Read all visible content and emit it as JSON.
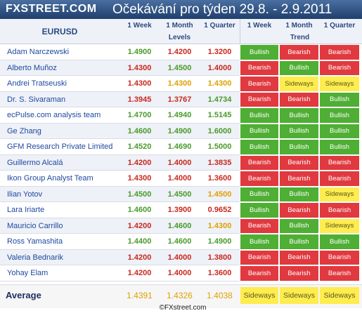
{
  "header": {
    "logo": "FXSTREET.COM",
    "title": "Očekávání pro týden 29.8. - 2.9.2011"
  },
  "table": {
    "pair": "EURUSD",
    "columns": [
      "1 Week",
      "1 Month",
      "1 Quarter",
      "1 Week",
      "1 Month",
      "1 Quarter"
    ],
    "group_levels": "Levels",
    "group_trend": "Trend",
    "rows": [
      {
        "name": "Adam Narczewski",
        "w": "1.4900",
        "m": "1.4200",
        "q": "1.3200",
        "tw": "Bullish",
        "tm": "Bearish",
        "tq": "Bearish"
      },
      {
        "name": "Alberto Muñoz",
        "w": "1.4300",
        "m": "1.4500",
        "q": "1.4000",
        "tw": "Bearish",
        "tm": "Bullish",
        "tq": "Bearish"
      },
      {
        "name": "Andrei Tratseuski",
        "w": "1.4300",
        "m": "1.4300",
        "q": "1.4300",
        "tw": "Bearish",
        "tm": "Sideways",
        "tq": "Sideways"
      },
      {
        "name": "Dr. S. Sivaraman",
        "w": "1.3945",
        "m": "1.3767",
        "q": "1.4734",
        "tw": "Bearish",
        "tm": "Bearish",
        "tq": "Bullish"
      },
      {
        "name": "ecPulse.com analysis team",
        "w": "1.4700",
        "m": "1.4940",
        "q": "1.5145",
        "tw": "Bullish",
        "tm": "Bullish",
        "tq": "Bullish"
      },
      {
        "name": "Ge Zhang",
        "w": "1.4600",
        "m": "1.4900",
        "q": "1.6000",
        "tw": "Bullish",
        "tm": "Bullish",
        "tq": "Bullish"
      },
      {
        "name": "GFM Research Private Limited",
        "w": "1.4520",
        "m": "1.4690",
        "q": "1.5000",
        "tw": "Bullish",
        "tm": "Bullish",
        "tq": "Bullish"
      },
      {
        "name": "Guillermo Alcalá",
        "w": "1.4200",
        "m": "1.4000",
        "q": "1.3835",
        "tw": "Bearish",
        "tm": "Bearish",
        "tq": "Bearish"
      },
      {
        "name": "Ikon Group Analyst Team",
        "w": "1.4300",
        "m": "1.4000",
        "q": "1.3600",
        "tw": "Bearish",
        "tm": "Bearish",
        "tq": "Bearish"
      },
      {
        "name": "Ilian Yotov",
        "w": "1.4500",
        "m": "1.4500",
        "q": "1.4500",
        "tw": "Bullish",
        "tm": "Bullish",
        "tq": "Sideways"
      },
      {
        "name": "Lara Iriarte",
        "w": "1.4600",
        "m": "1.3900",
        "q": "0.9652",
        "tw": "Bullish",
        "tm": "Bearish",
        "tq": "Bearish"
      },
      {
        "name": "Mauricio Carrillo",
        "w": "1.4200",
        "m": "1.4600",
        "q": "1.4300",
        "tw": "Bearish",
        "tm": "Bullish",
        "tq": "Sideways"
      },
      {
        "name": "Ross Yamashita",
        "w": "1.4400",
        "m": "1.4600",
        "q": "1.4900",
        "tw": "Bullish",
        "tm": "Bullish",
        "tq": "Bullish"
      },
      {
        "name": "Valeria Bednarik",
        "w": "1.4200",
        "m": "1.4000",
        "q": "1.3800",
        "tw": "Bearish",
        "tm": "Bearish",
        "tq": "Bearish"
      },
      {
        "name": "Yohay Elam",
        "w": "1.4200",
        "m": "1.4000",
        "q": "1.3600",
        "tw": "Bearish",
        "tm": "Bearish",
        "tq": "Bearish"
      }
    ],
    "average": {
      "label": "Average",
      "w": "1.4391",
      "m": "1.4326",
      "q": "1.4038",
      "tw": "Sideways",
      "tm": "Sideways",
      "tq": "Sideways"
    },
    "footer": "©FXstreet.com"
  },
  "colors": {
    "bullish": "#4fae34",
    "bearish": "#e0393f",
    "sideways": "#ffec4f",
    "level_up": "#4a9a2a",
    "level_down": "#c8281e",
    "level_flat": "#e0a000",
    "header_bg": "#1f3f6d",
    "zebra_a": "#ffffff",
    "zebra_b": "#eef1f7"
  }
}
